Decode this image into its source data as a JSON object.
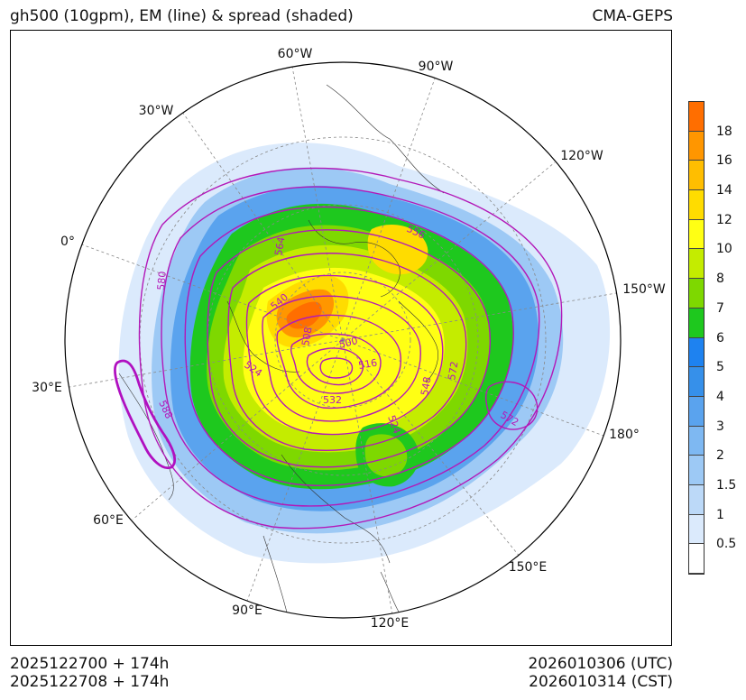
{
  "header": {
    "title": "gh500 (10gpm), EM (line) & spread (shaded)",
    "model": "CMA-GEPS"
  },
  "footer": {
    "init_utc": "2025122700 + 174h",
    "init_cst": "2025122708 + 174h",
    "valid_utc": "2026010306 (UTC)",
    "valid_cst": "2026010314 (CST)"
  },
  "longitude_labels": [
    "60°W",
    "90°W",
    "30°W",
    "120°W",
    "0°",
    "150°W",
    "30°E",
    "180°",
    "60°E",
    "150°E",
    "90°E",
    "120°E"
  ],
  "contour_labels": [
    "556",
    "564",
    "580",
    "540",
    "508",
    "500",
    "516",
    "572",
    "548",
    "524",
    "532",
    "588",
    "524",
    "572"
  ],
  "colorbar": {
    "levels": [
      "0.5",
      "1",
      "1.5",
      "2",
      "3",
      "4",
      "5",
      "6",
      "7",
      "8",
      "10",
      "12",
      "14",
      "16",
      "18"
    ],
    "colors": [
      "#ffffff",
      "#dbeafc",
      "#bcd9f8",
      "#9dc9f5",
      "#7eb8f2",
      "#5aa3ee",
      "#3690ea",
      "#1e82f0",
      "#1ec81e",
      "#7ed800",
      "#c4ec00",
      "#ffff14",
      "#ffdc00",
      "#ffbe00",
      "#ff9600",
      "#ff6e00"
    ]
  },
  "legend_colors": {
    "contour": "#b318b8",
    "contour_thick": "#b010c0"
  }
}
